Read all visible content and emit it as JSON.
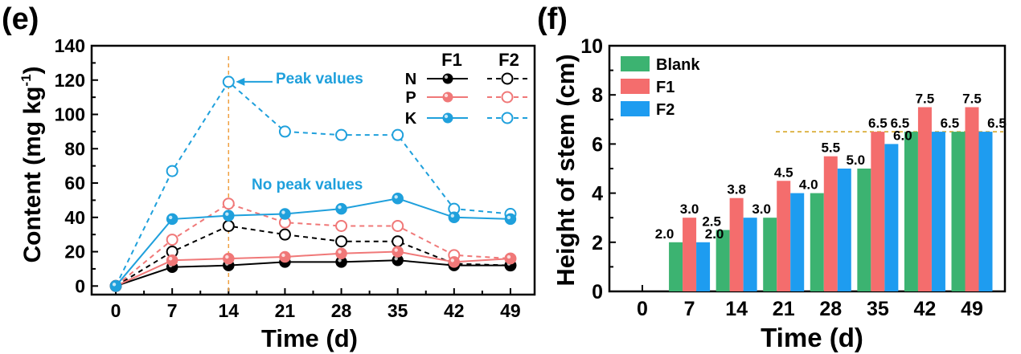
{
  "panels": {
    "e": {
      "label": "(e)"
    },
    "f": {
      "label": "(f)"
    }
  },
  "chart_data": [
    {
      "type": "line",
      "panel": "(e)",
      "xlabel": "Time (d)",
      "ylabel": "Content (mg kg",
      "ylabel_sup": "-1",
      "ylabel_end": ")",
      "x": [
        0,
        7,
        14,
        21,
        28,
        35,
        42,
        49
      ],
      "xlim": [
        -3,
        52
      ],
      "ylim": [
        -5,
        140
      ],
      "xticks": [
        "0",
        "7",
        "14",
        "21",
        "28",
        "35",
        "42",
        "49"
      ],
      "yticks": [
        0,
        20,
        40,
        60,
        80,
        100,
        120,
        140
      ],
      "grid": false,
      "legend": {
        "position": "top-right",
        "col_headers": [
          "F1",
          "F2"
        ],
        "rows": [
          "N",
          "P",
          "K"
        ]
      },
      "series": [
        {
          "name": "N",
          "group": "F1",
          "style": "solid",
          "marker": "filled",
          "color": "#000000",
          "values": [
            0,
            11,
            12,
            14,
            14,
            15,
            12,
            12
          ]
        },
        {
          "name": "P",
          "group": "F1",
          "style": "solid",
          "marker": "filled",
          "color": "#f07878",
          "values": [
            0,
            15,
            16,
            17,
            19,
            20,
            14,
            16
          ]
        },
        {
          "name": "K",
          "group": "F1",
          "style": "solid",
          "marker": "filled",
          "color": "#1fa0dc",
          "values": [
            0,
            39,
            41,
            42,
            45,
            51,
            40,
            39
          ]
        },
        {
          "name": "N",
          "group": "F2",
          "style": "dashed",
          "marker": "open",
          "color": "#000000",
          "values": [
            0,
            20,
            35,
            30,
            26,
            26,
            13,
            12
          ]
        },
        {
          "name": "P",
          "group": "F2",
          "style": "dashed",
          "marker": "open",
          "color": "#f07878",
          "values": [
            0,
            27,
            48,
            37,
            35,
            35,
            18,
            16
          ]
        },
        {
          "name": "K",
          "group": "F2",
          "style": "dashed",
          "marker": "open",
          "color": "#1fa0dc",
          "values": [
            0,
            67,
            119,
            90,
            88,
            88,
            45,
            42
          ]
        }
      ],
      "vline": {
        "x": 14,
        "color": "#f0a040"
      },
      "annotations": [
        {
          "text": "Peak values",
          "color": "#1fa0dc",
          "x": 14,
          "y": 119
        },
        {
          "text": "No peak values",
          "color": "#1fa0dc"
        }
      ]
    },
    {
      "type": "bar",
      "panel": "(f)",
      "xlabel": "Time (d)",
      "ylabel": "Height of stem (cm)",
      "categories": [
        "0",
        "7",
        "14",
        "21",
        "28",
        "35",
        "42",
        "49"
      ],
      "ylim": [
        0,
        10
      ],
      "yticks": [
        0,
        2,
        4,
        6,
        8,
        10
      ],
      "grid": false,
      "legend": {
        "position": "top-left"
      },
      "series": [
        {
          "name": "Blank",
          "color": "#3cb371",
          "values": [
            null,
            2.0,
            2.5,
            3.0,
            4.0,
            5.0,
            6.5,
            6.5
          ],
          "labels": [
            "",
            "2.0",
            "2.5",
            "",
            "",
            "",
            "6.5",
            ""
          ]
        },
        {
          "name": "F1",
          "color": "#f46d6d",
          "values": [
            null,
            3.0,
            3.8,
            4.5,
            5.5,
            6.5,
            7.5,
            7.5
          ],
          "labels": [
            "",
            "3.0",
            "3.8",
            "4.5",
            "5.5",
            "6.5",
            "7.5",
            "7.5"
          ]
        },
        {
          "name": "F2",
          "color": "#1e9cf0",
          "values": [
            null,
            2.0,
            3.0,
            4.0,
            5.0,
            6.0,
            6.5,
            6.5
          ],
          "labels": [
            "",
            "2.0",
            "3.0",
            "4.0",
            "5.0",
            "6.0",
            "6.5",
            "6.5"
          ]
        }
      ],
      "hline": {
        "y": 6.5,
        "color": "#d4a017"
      }
    }
  ]
}
